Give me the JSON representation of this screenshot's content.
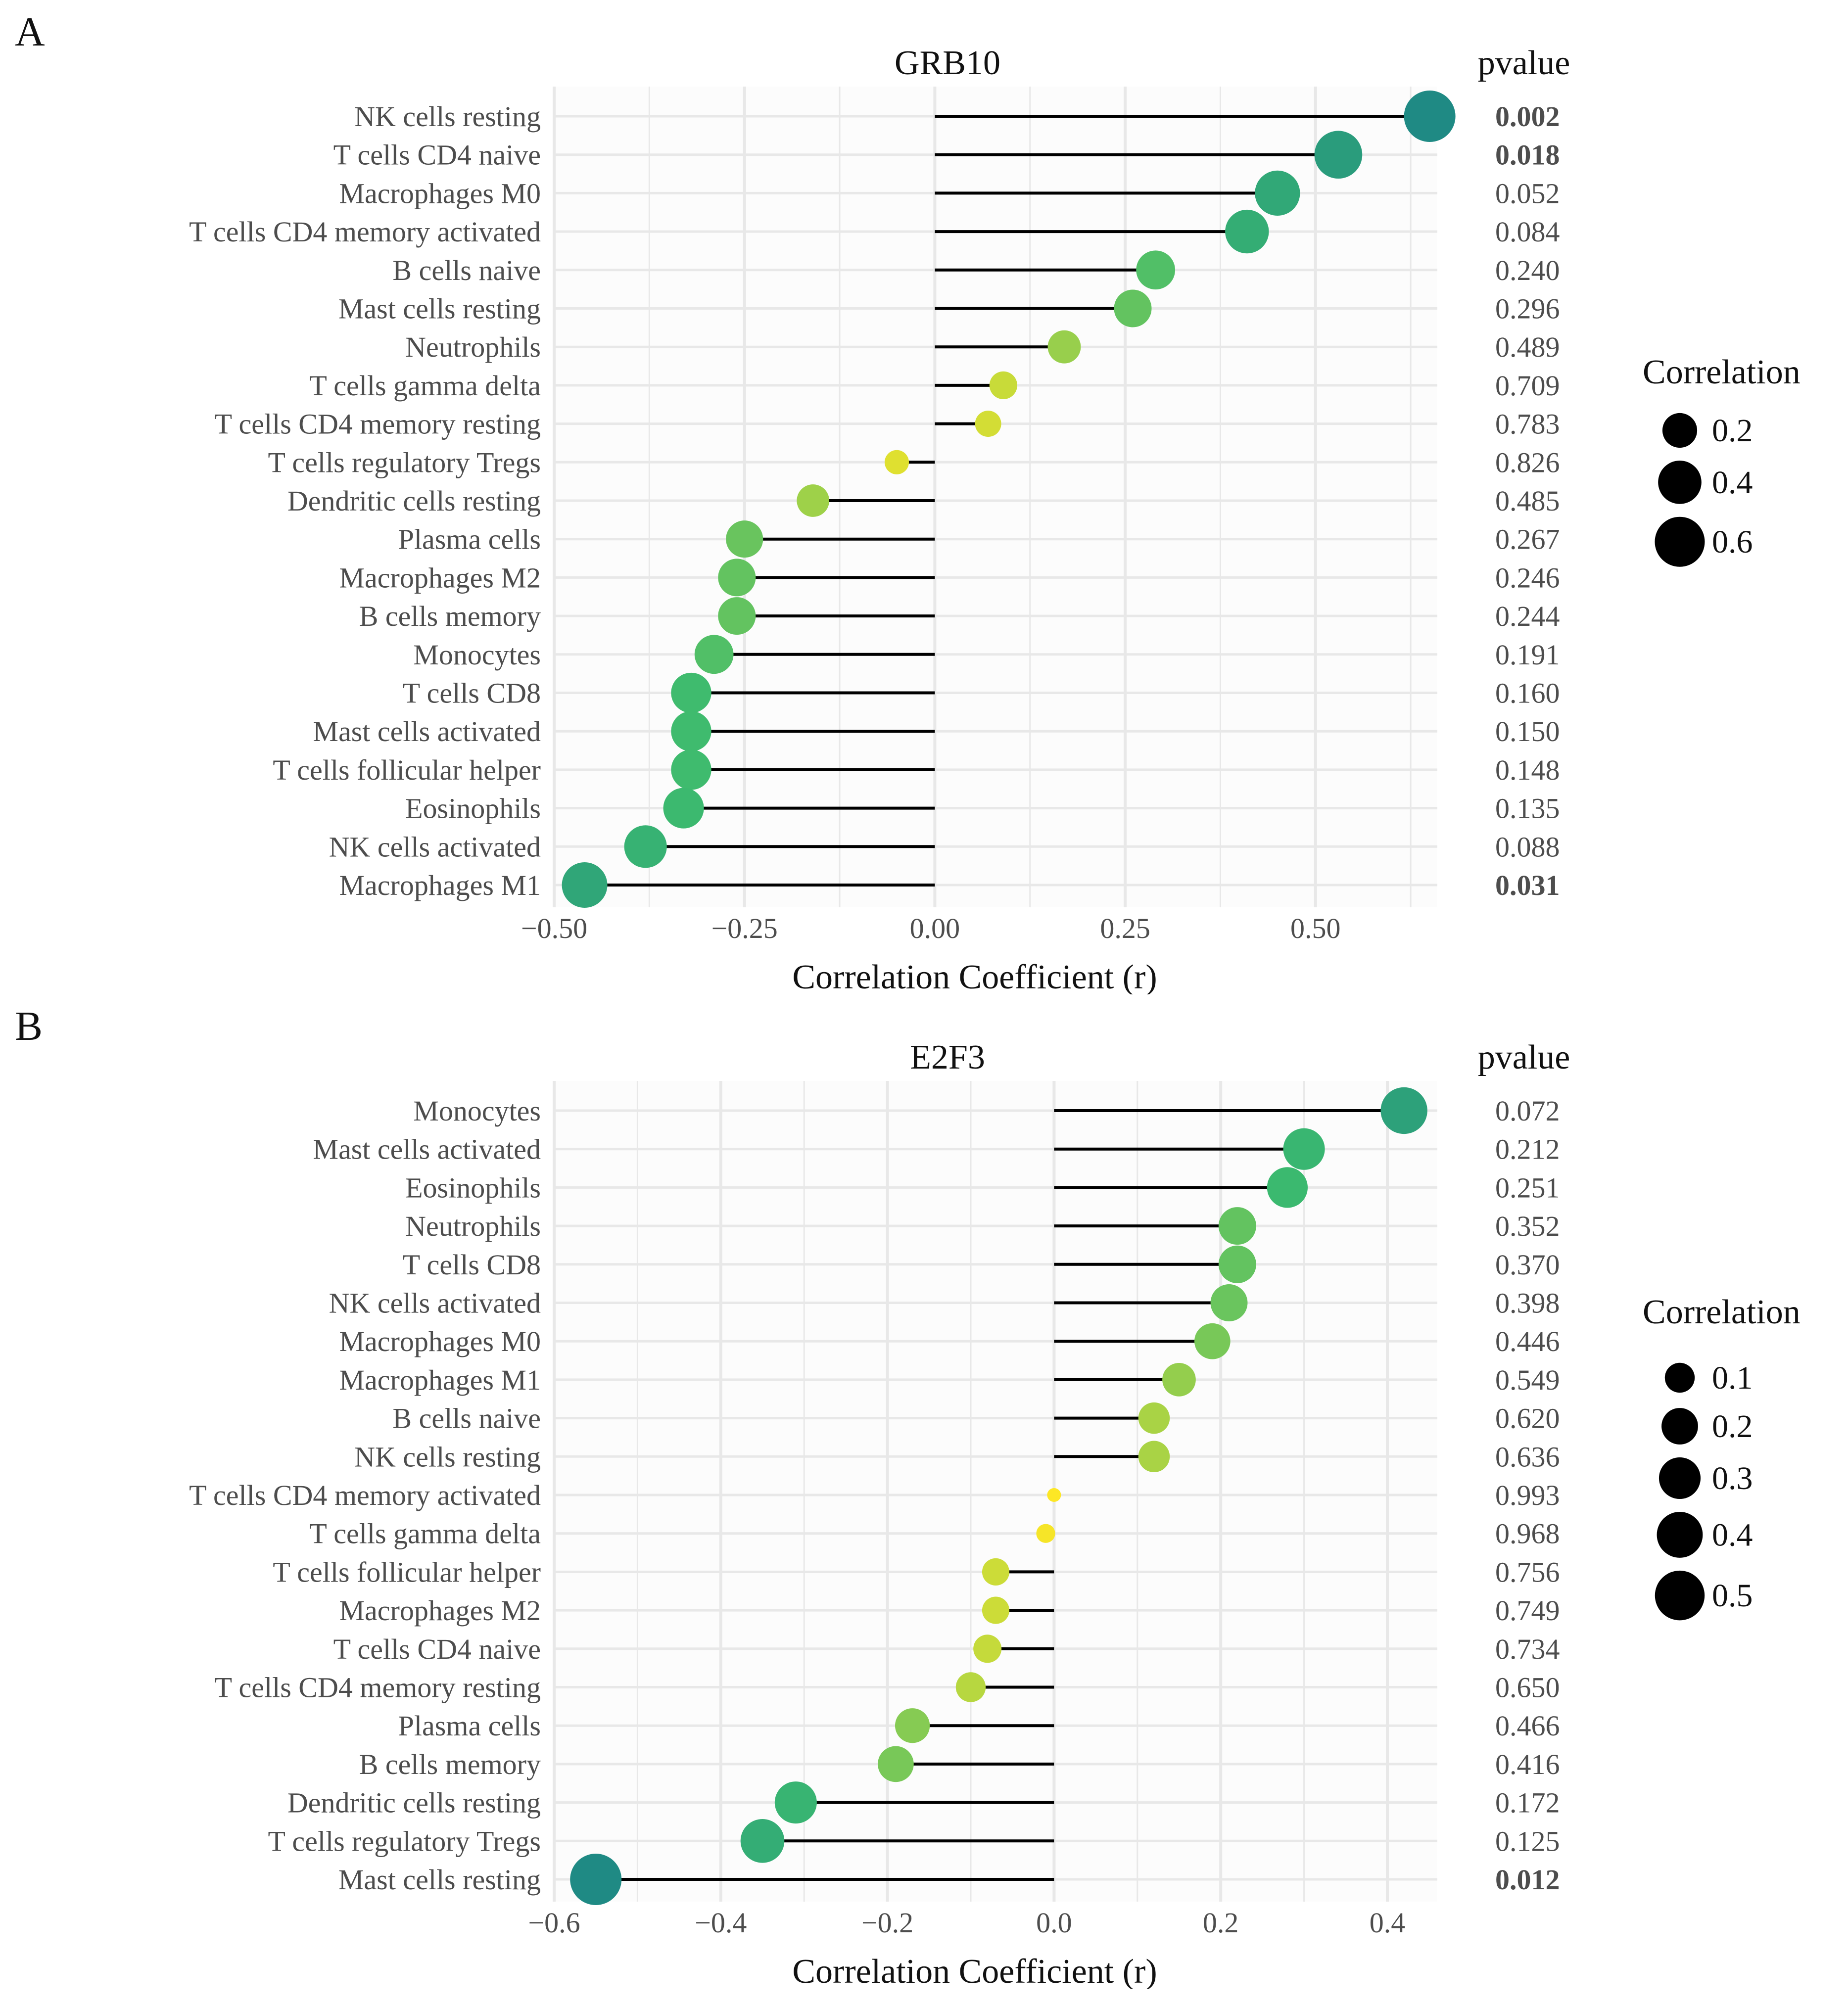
{
  "chart_data": [
    {
      "type": "lollipop",
      "panel_label": "A",
      "title": "GRB10",
      "xlabel": "Correlation Coefficient (r)",
      "ylabel": "",
      "xlim": [
        -0.5,
        0.66
      ],
      "xticks": [
        -0.5,
        -0.25,
        0.0,
        0.25,
        0.5
      ],
      "xtick_labels": [
        "−0.50",
        "−0.25",
        "0.00",
        "0.25",
        "0.50"
      ],
      "pvalue_header": "pvalue",
      "size_legend": {
        "title": "Correlation",
        "values": [
          0.2,
          0.4,
          0.6
        ],
        "labels": [
          "0.2",
          "0.4",
          "0.6"
        ]
      },
      "grid": true,
      "legend_position": "right",
      "colors": {
        "low": "#fde725",
        "mid": "#3cba6f",
        "high": "#1f8a84",
        "stem": "#000000",
        "grid": "#e8e8e8"
      },
      "categories": [
        "NK cells resting",
        "T cells CD4 naive",
        "Macrophages M0",
        "T cells CD4 memory activated",
        "B cells naive",
        "Mast cells resting",
        "Neutrophils",
        "T cells gamma delta",
        "T cells CD4 memory resting",
        "T cells regulatory Tregs",
        "Dendritic cells resting",
        "Plasma cells",
        "Macrophages M2",
        "B cells memory",
        "Monocytes",
        "T cells CD8",
        "Mast cells activated",
        "T cells follicular helper",
        "Eosinophils",
        "NK cells activated",
        "Macrophages M1"
      ],
      "values": [
        0.65,
        0.53,
        0.45,
        0.41,
        0.29,
        0.26,
        0.17,
        0.09,
        0.07,
        -0.05,
        -0.16,
        -0.25,
        -0.26,
        -0.26,
        -0.29,
        -0.32,
        -0.32,
        -0.32,
        -0.33,
        -0.38,
        -0.46
      ],
      "pvalues": [
        "0.002",
        "0.018",
        "0.052",
        "0.084",
        "0.240",
        "0.296",
        "0.489",
        "0.709",
        "0.783",
        "0.826",
        "0.485",
        "0.267",
        "0.246",
        "0.244",
        "0.191",
        "0.160",
        "0.150",
        "0.148",
        "0.135",
        "0.088",
        "0.031"
      ],
      "significant": [
        true,
        true,
        false,
        false,
        false,
        false,
        false,
        false,
        false,
        false,
        false,
        false,
        false,
        false,
        false,
        false,
        false,
        false,
        false,
        false,
        true
      ]
    },
    {
      "type": "lollipop",
      "panel_label": "B",
      "title": "E2F3",
      "xlabel": "Correlation Coefficient (r)",
      "ylabel": "",
      "xlim": [
        -0.6,
        0.46
      ],
      "xticks": [
        -0.6,
        -0.4,
        -0.2,
        0.0,
        0.2,
        0.4
      ],
      "xtick_labels": [
        "−0.6",
        "−0.4",
        "−0.2",
        "0.0",
        "0.2",
        "0.4"
      ],
      "pvalue_header": "pvalue",
      "size_legend": {
        "title": "Correlation",
        "values": [
          0.1,
          0.2,
          0.3,
          0.4,
          0.5
        ],
        "labels": [
          "0.1",
          "0.2",
          "0.3",
          "0.4",
          "0.5"
        ]
      },
      "grid": true,
      "legend_position": "right",
      "colors": {
        "low": "#fde725",
        "mid": "#3cba6f",
        "high": "#1f8a84",
        "stem": "#000000",
        "grid": "#e8e8e8"
      },
      "categories": [
        "Monocytes",
        "Mast cells activated",
        "Eosinophils",
        "Neutrophils",
        "T cells CD8",
        "NK cells activated",
        "Macrophages M0",
        "Macrophages M1",
        "B cells naive",
        "NK cells resting",
        "T cells CD4 memory activated",
        "T cells gamma delta",
        "T cells follicular helper",
        "Macrophages M2",
        "T cells CD4 naive",
        "T cells CD4 memory resting",
        "Plasma cells",
        "B cells memory",
        "Dendritic cells resting",
        "T cells regulatory Tregs",
        "Mast cells resting"
      ],
      "values": [
        0.42,
        0.3,
        0.28,
        0.22,
        0.22,
        0.21,
        0.19,
        0.15,
        0.12,
        0.12,
        0.0,
        -0.01,
        -0.07,
        -0.07,
        -0.08,
        -0.1,
        -0.17,
        -0.19,
        -0.31,
        -0.35,
        -0.55
      ],
      "pvalues": [
        "0.072",
        "0.212",
        "0.251",
        "0.352",
        "0.370",
        "0.398",
        "0.446",
        "0.549",
        "0.620",
        "0.636",
        "0.993",
        "0.968",
        "0.756",
        "0.749",
        "0.734",
        "0.650",
        "0.466",
        "0.416",
        "0.172",
        "0.125",
        "0.012"
      ],
      "significant": [
        false,
        false,
        false,
        false,
        false,
        false,
        false,
        false,
        false,
        false,
        false,
        false,
        false,
        false,
        false,
        false,
        false,
        false,
        false,
        false,
        true
      ]
    }
  ]
}
